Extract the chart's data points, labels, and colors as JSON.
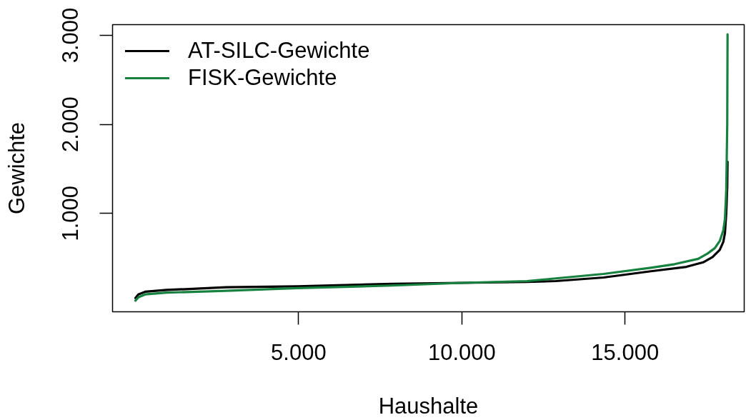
{
  "chart_data": {
    "type": "line",
    "xlabel": "Haushalte",
    "ylabel": "Gewichte",
    "xlim": [
      -700,
      18650
    ],
    "ylim": [
      -105,
      3120
    ],
    "xticks": [
      {
        "value": 5000,
        "label": "5.000"
      },
      {
        "value": 10000,
        "label": "10.000"
      },
      {
        "value": 15000,
        "label": "15.000"
      }
    ],
    "yticks": [
      {
        "value": 1000,
        "label": "1.000"
      },
      {
        "value": 2000,
        "label": "2.000"
      },
      {
        "value": 3000,
        "label": "3.000"
      }
    ],
    "legend": "top left",
    "series": [
      {
        "name": "AT-SILC-Gewichte",
        "color": "#000000",
        "x": [
          1,
          90,
          300,
          960,
          2780,
          4960,
          7870,
          10000,
          12000,
          12880,
          14340,
          15790,
          16880,
          17390,
          17680,
          17900,
          18010,
          18060,
          18100,
          18130,
          18140
        ],
        "values": [
          50,
          90,
          120,
          140,
          170,
          180,
          210,
          220,
          230,
          240,
          280,
          350,
          400,
          450,
          510,
          590,
          680,
          780,
          1000,
          1300,
          1580
        ]
      },
      {
        "name": "FISK-Gewichte",
        "color": "#17813f",
        "x": [
          1,
          100,
          300,
          960,
          2780,
          4960,
          7870,
          10000,
          12000,
          12880,
          14340,
          15790,
          16520,
          17240,
          17530,
          17750,
          17900,
          18010,
          18060,
          18100,
          18130,
          18140
        ],
        "values": [
          20,
          60,
          90,
          110,
          130,
          160,
          190,
          220,
          240,
          270,
          320,
          390,
          430,
          490,
          550,
          610,
          690,
          810,
          940,
          1260,
          2000,
          3010
        ]
      }
    ]
  }
}
